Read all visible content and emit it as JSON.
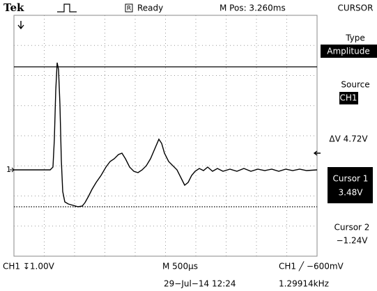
{
  "header": {
    "brand": "Tek",
    "status_icon": "R",
    "status": "Ready",
    "position": "M Pos: 3.260ms",
    "menu_title": "CURSOR"
  },
  "menu": [
    {
      "label": "Type",
      "value": "Amplitude"
    },
    {
      "label": "Source",
      "value": "CH1"
    },
    {
      "label": "ΔV 4.72V"
    },
    {
      "label": "Cursor 1",
      "value": "3.48V"
    },
    {
      "label": "Cursor 2",
      "value": "−1.24V"
    }
  ],
  "markers": {
    "ground": "1"
  },
  "footer": {
    "channel_scale": "CH1 ↧1.00V",
    "time_scale": "M 500µs",
    "trigger": "CH1 ╱ −600mV",
    "date": "29−Jul−14 12:24",
    "frequency": "1.29914kHz"
  }
}
